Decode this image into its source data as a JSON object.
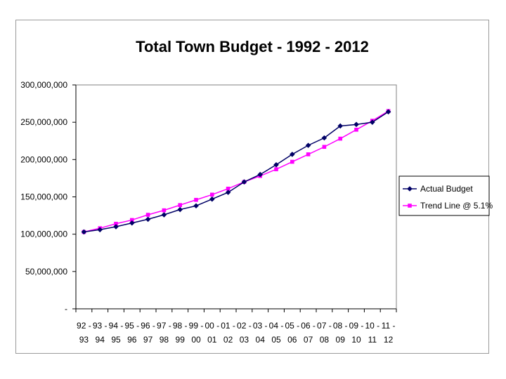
{
  "chart_data": {
    "type": "line",
    "title": "Total Town Budget - 1992 - 2012",
    "xlabel": "",
    "ylabel": "",
    "ylim": [
      0,
      300000000
    ],
    "y_ticks": [
      {
        "value": 0,
        "label": "-"
      },
      {
        "value": 50000000,
        "label": "50,000,000"
      },
      {
        "value": 100000000,
        "label": "100,000,000"
      },
      {
        "value": 150000000,
        "label": "150,000,000"
      },
      {
        "value": 200000000,
        "label": "200,000,000"
      },
      {
        "value": 250000000,
        "label": "250,000,000"
      },
      {
        "value": 300000000,
        "label": "300,000,000"
      }
    ],
    "categories": [
      {
        "top": "92 -",
        "bottom": "93"
      },
      {
        "top": "93 -",
        "bottom": "94"
      },
      {
        "top": "94 -",
        "bottom": "95"
      },
      {
        "top": "95 -",
        "bottom": "96"
      },
      {
        "top": "96 -",
        "bottom": "97"
      },
      {
        "top": "97 -",
        "bottom": "98"
      },
      {
        "top": "98 -",
        "bottom": "99"
      },
      {
        "top": "99 -",
        "bottom": "00"
      },
      {
        "top": "00 -",
        "bottom": "01"
      },
      {
        "top": "01 -",
        "bottom": "02"
      },
      {
        "top": "02 -",
        "bottom": "03"
      },
      {
        "top": "03 -",
        "bottom": "04"
      },
      {
        "top": "04 -",
        "bottom": "05"
      },
      {
        "top": "05 -",
        "bottom": "06"
      },
      {
        "top": "06 -",
        "bottom": "07"
      },
      {
        "top": "07 -",
        "bottom": "08"
      },
      {
        "top": "08 -",
        "bottom": "09"
      },
      {
        "top": "09 -",
        "bottom": "10"
      },
      {
        "top": "10 -",
        "bottom": "11"
      },
      {
        "top": "11 -",
        "bottom": "12"
      }
    ],
    "series": [
      {
        "name": "Actual Budget",
        "color": "#000066",
        "marker": "diamond",
        "values": [
          103000000,
          106000000,
          110000000,
          115000000,
          120000000,
          126000000,
          133000000,
          138000000,
          147000000,
          156000000,
          170000000,
          180000000,
          193000000,
          207000000,
          219000000,
          229000000,
          245000000,
          247000000,
          250000000,
          264000000
        ]
      },
      {
        "name": "Trend Line @ 5.1%",
        "color": "#ff00ff",
        "marker": "square",
        "values": [
          103000000,
          108000000,
          114000000,
          119000000,
          126000000,
          132000000,
          139000000,
          146000000,
          153000000,
          161000000,
          170000000,
          178000000,
          187000000,
          197000000,
          207000000,
          217000000,
          228000000,
          240000000,
          252000000,
          265000000
        ]
      }
    ],
    "grid": false,
    "legend_position": "right"
  }
}
